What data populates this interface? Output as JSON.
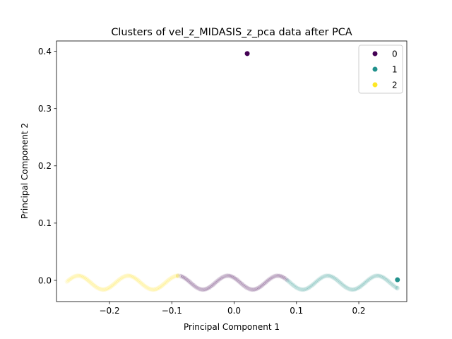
{
  "chart_data": {
    "type": "scatter",
    "title": "Clusters of vel_z_MIDASIS_z_pca data after PCA",
    "xlabel": "Principal Component 1",
    "ylabel": "Principal Component 2",
    "xlim": [
      -0.285,
      0.277
    ],
    "ylim": [
      -0.037,
      0.418
    ],
    "xticks": [
      -0.2,
      -0.1,
      0.0,
      0.1,
      0.2
    ],
    "xtick_labels": [
      "−0.2",
      "−0.1",
      "0.0",
      "0.1",
      "0.2"
    ],
    "yticks": [
      0.0,
      0.1,
      0.2,
      0.3,
      0.4
    ],
    "ytick_labels": [
      "0.0",
      "0.1",
      "0.2",
      "0.3",
      "0.4"
    ],
    "legend_position": "top-right",
    "series": [
      {
        "name": "0",
        "color": "#440154",
        "curve": {
          "x_start": -0.09,
          "x_end": 0.085,
          "amplitude": 0.012,
          "period": 0.08,
          "phase": 2.356,
          "offset": -0.004
        },
        "highlight_points": [
          {
            "x": 0.021,
            "y": 0.396
          }
        ]
      },
      {
        "name": "1",
        "color": "#21918c",
        "curve": {
          "x_start": 0.085,
          "x_end": 0.262,
          "amplitude": 0.012,
          "period": 0.08,
          "phase": 2.356,
          "offset": -0.004
        },
        "highlight_points": [
          {
            "x": 0.262,
            "y": 0.001
          }
        ]
      },
      {
        "name": "2",
        "color": "#fde725",
        "curve": {
          "x_start": -0.268,
          "x_end": -0.09,
          "amplitude": 0.012,
          "period": 0.08,
          "phase": 2.356,
          "offset": -0.004
        },
        "highlight_points": []
      }
    ]
  }
}
